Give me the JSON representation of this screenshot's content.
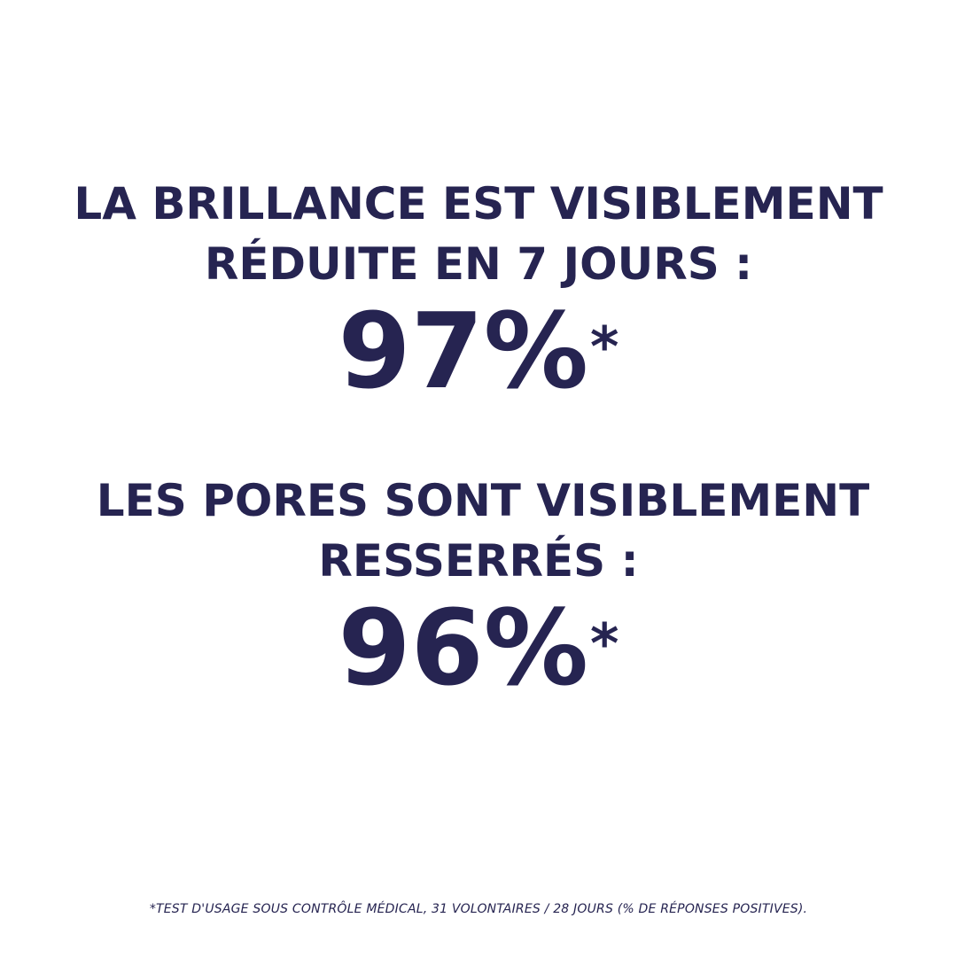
{
  "colors": {
    "text": "#262451",
    "background": "#ffffff"
  },
  "claims": [
    {
      "lines": [
        "LA BRILLANCE EST VISIBLEMENT",
        "RÉDUITE EN 7 JOURS :"
      ],
      "value": "97%",
      "marker": "*"
    },
    {
      "lines": [
        "LES PORES SONT VISIBLEMENT",
        "RESSERRÉS :"
      ],
      "value": "96%",
      "marker": "*"
    }
  ],
  "footnote": "*TEST D'USAGE SOUS CONTRÔLE MÉDICAL, 31 VOLONTAIRES / 28 JOURS (% DE RÉPONSES POSITIVES)."
}
